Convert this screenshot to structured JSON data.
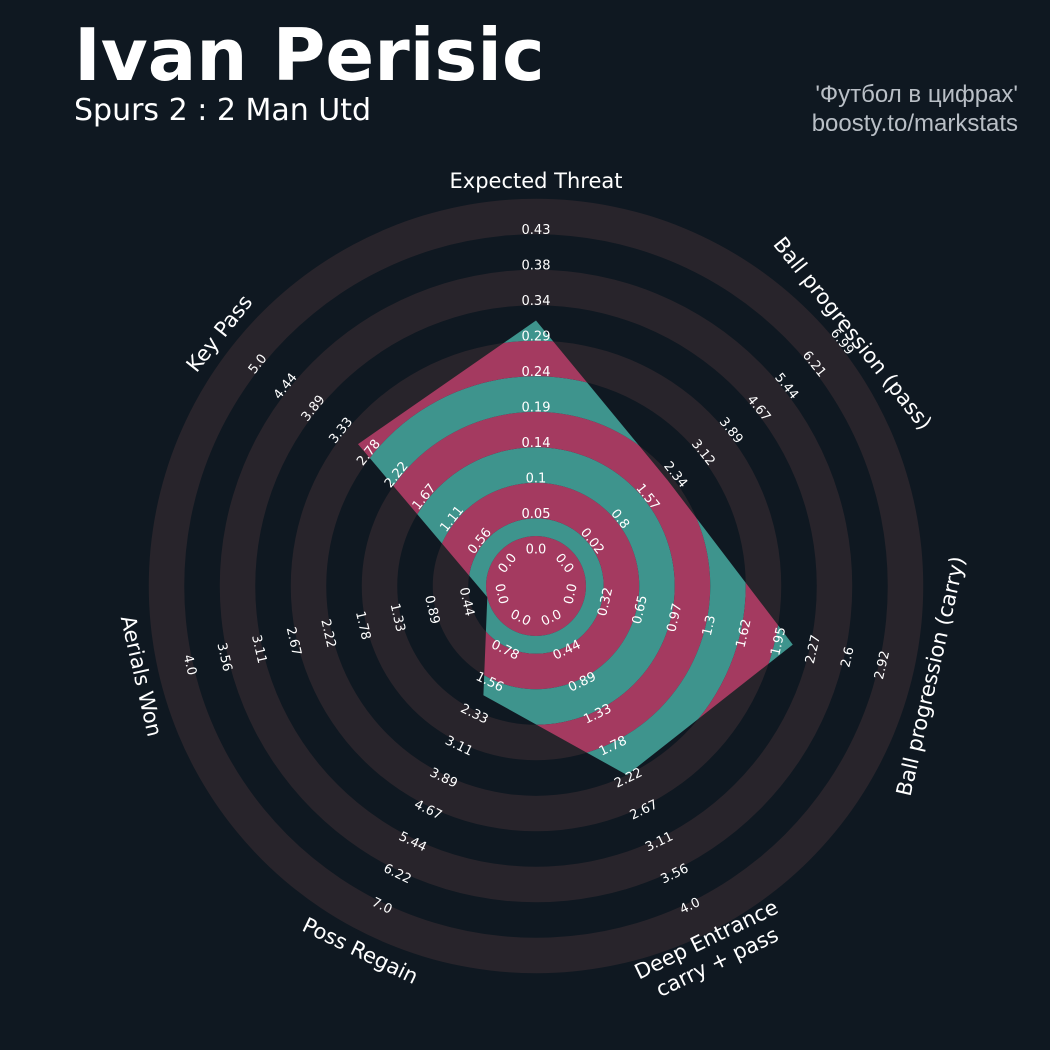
{
  "header": {
    "player": "Ivan Perisic",
    "match": "Spurs 2 : 2 Man Utd",
    "credit_line1": "'Футбол в цифрах'",
    "credit_line2": "boosty.to/markstats"
  },
  "colors": {
    "background": "#0f1821",
    "ring_band": "#28242b",
    "fill_primary": "#a43a60",
    "fill_alternate": "#3e948d",
    "text": "#ffffff"
  },
  "chart_data": {
    "type": "radar",
    "title": "Ivan Perisic",
    "subtitle": "Spurs 2 : 2 Man Utd",
    "grid": true,
    "legend": "none",
    "params": [
      {
        "label": "Expected Threat",
        "value": 0.29,
        "ticks": [
          "0.0",
          "0.05",
          "0.1",
          "0.14",
          "0.19",
          "0.24",
          "0.29",
          "0.34",
          "0.38",
          "0.43"
        ]
      },
      {
        "label": "Ball progression (pass)",
        "value": 2.34,
        "ticks": [
          "0.0",
          "0.02",
          "0.8",
          "1.57",
          "2.34",
          "3.12",
          "3.89",
          "4.67",
          "5.44",
          "6.21",
          "6.99"
        ]
      },
      {
        "label": "Ball progression (carry)",
        "value": 1.95,
        "ticks": [
          "0.0",
          "0.32",
          "0.65",
          "0.97",
          "1.3",
          "1.62",
          "1.95",
          "2.27",
          "2.6",
          "2.92"
        ]
      },
      {
        "label": "Deep Entrance\ncarry + pass",
        "value": 2.0,
        "ticks": [
          "0.0",
          "0.44",
          "0.89",
          "1.33",
          "1.78",
          "2.22",
          "2.67",
          "3.11",
          "3.56",
          "4.0"
        ]
      },
      {
        "label": "Poss Regain",
        "value": 1.56,
        "ticks": [
          "0.0",
          "0.78",
          "1.56",
          "2.33",
          "3.11",
          "3.89",
          "4.67",
          "5.44",
          "6.22",
          "7.0"
        ]
      },
      {
        "label": "Aerials Won",
        "value": 0.0,
        "ticks": [
          "0.0",
          "0.44",
          "0.89",
          "1.33",
          "1.78",
          "2.22",
          "2.67",
          "3.11",
          "3.56",
          "4.0"
        ]
      },
      {
        "label": "Key Pass",
        "value": 2.78,
        "ticks": [
          "0.0",
          "0.56",
          "1.11",
          "1.67",
          "2.22",
          "2.78",
          "3.33",
          "3.89",
          "4.44",
          "5.0"
        ]
      }
    ]
  }
}
